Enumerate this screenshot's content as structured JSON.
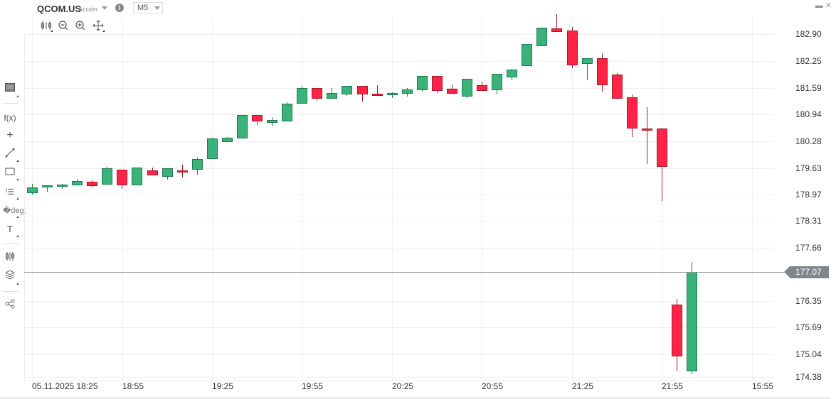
{
  "header": {
    "symbol": "QCOM.US",
    "asset_type": "Acción",
    "info_icon": "i",
    "timeframe": "M5",
    "window_controls": {
      "minimize": "▬",
      "close": "✕"
    }
  },
  "toolbar_top": {
    "icons": [
      "chart-type-icon",
      "zoom-out-icon",
      "zoom-in-icon",
      "move-crosshair-icon"
    ]
  },
  "toolbar_left": {
    "icons": [
      "chart-view-icon",
      "function-fx-icon",
      "crosshair-icon",
      "trendline-icon",
      "rectangle-icon",
      "fibonacci-icon",
      "pitchfork-icon",
      "text-icon",
      "indicators-icon",
      "layers-icon",
      "share-icon"
    ]
  },
  "current_price": "177.07",
  "colors": {
    "up": "#3bb27a",
    "up_border": "#1e7a4e",
    "down": "#ff2446",
    "down_border": "#a3182c",
    "price_tag": "#7f878c"
  },
  "chart_data": {
    "type": "candlestick",
    "title": "QCOM.US M5",
    "xlabel": "",
    "ylabel": "",
    "x_ticks": [
      "05.11.2025 18:25",
      "18:55",
      "19:25",
      "19:55",
      "20:25",
      "20:55",
      "21:25",
      "21:55",
      "15:55"
    ],
    "y_ticks": [
      "182.90",
      "182.25",
      "181.59",
      "180.94",
      "180.28",
      "179.63",
      "178.97",
      "178.31",
      "177.66",
      "176.35",
      "175.69",
      "175.04",
      "174.38"
    ],
    "ylim": [
      174.3,
      183.3
    ],
    "grid": true,
    "candles": [
      {
        "t": "18:25",
        "o": 179.0,
        "h": 179.22,
        "l": 178.97,
        "c": 179.14
      },
      {
        "t": "18:30",
        "o": 179.13,
        "h": 179.17,
        "l": 179.04,
        "c": 179.19
      },
      {
        "t": "18:35",
        "o": 179.17,
        "h": 179.23,
        "l": 179.1,
        "c": 179.21
      },
      {
        "t": "18:40",
        "o": 179.19,
        "h": 179.34,
        "l": 179.19,
        "c": 179.3
      },
      {
        "t": "18:45",
        "o": 179.28,
        "h": 179.31,
        "l": 179.14,
        "c": 179.17
      },
      {
        "t": "18:50",
        "o": 179.2,
        "h": 179.64,
        "l": 179.2,
        "c": 179.6
      },
      {
        "t": "18:55",
        "o": 179.58,
        "h": 179.58,
        "l": 179.11,
        "c": 179.19
      },
      {
        "t": "19:00",
        "o": 179.19,
        "h": 179.62,
        "l": 179.19,
        "c": 179.62
      },
      {
        "t": "19:05",
        "o": 179.55,
        "h": 179.63,
        "l": 179.44,
        "c": 179.44
      },
      {
        "t": "19:10",
        "o": 179.4,
        "h": 179.61,
        "l": 179.33,
        "c": 179.6
      },
      {
        "t": "19:15",
        "o": 179.55,
        "h": 179.69,
        "l": 179.38,
        "c": 179.51
      },
      {
        "t": "19:20",
        "o": 179.58,
        "h": 179.86,
        "l": 179.45,
        "c": 179.84
      },
      {
        "t": "19:25",
        "o": 179.84,
        "h": 180.35,
        "l": 179.84,
        "c": 180.34
      },
      {
        "t": "19:30",
        "o": 180.26,
        "h": 180.38,
        "l": 180.26,
        "c": 180.36
      },
      {
        "t": "19:35",
        "o": 180.34,
        "h": 180.91,
        "l": 180.34,
        "c": 180.91
      },
      {
        "t": "19:40",
        "o": 180.91,
        "h": 180.91,
        "l": 180.67,
        "c": 180.75
      },
      {
        "t": "19:45",
        "o": 180.73,
        "h": 180.87,
        "l": 180.63,
        "c": 180.79
      },
      {
        "t": "19:50",
        "o": 180.75,
        "h": 181.23,
        "l": 180.75,
        "c": 181.19
      },
      {
        "t": "19:55",
        "o": 181.19,
        "h": 181.62,
        "l": 181.19,
        "c": 181.58
      },
      {
        "t": "20:00",
        "o": 181.58,
        "h": 181.58,
        "l": 181.27,
        "c": 181.32
      },
      {
        "t": "20:05",
        "o": 181.32,
        "h": 181.57,
        "l": 181.31,
        "c": 181.45
      },
      {
        "t": "20:10",
        "o": 181.42,
        "h": 181.62,
        "l": 181.39,
        "c": 181.62
      },
      {
        "t": "20:15",
        "o": 181.62,
        "h": 181.62,
        "l": 181.25,
        "c": 181.42
      },
      {
        "t": "20:20",
        "o": 181.44,
        "h": 181.64,
        "l": 181.4,
        "c": 181.42
      },
      {
        "t": "20:25",
        "o": 181.42,
        "h": 181.47,
        "l": 181.34,
        "c": 181.45
      },
      {
        "t": "20:30",
        "o": 181.44,
        "h": 181.57,
        "l": 181.37,
        "c": 181.54
      },
      {
        "t": "20:35",
        "o": 181.52,
        "h": 181.88,
        "l": 181.49,
        "c": 181.88
      },
      {
        "t": "20:40",
        "o": 181.88,
        "h": 181.88,
        "l": 181.46,
        "c": 181.51
      },
      {
        "t": "20:45",
        "o": 181.56,
        "h": 181.66,
        "l": 181.43,
        "c": 181.44
      },
      {
        "t": "20:50",
        "o": 181.36,
        "h": 181.81,
        "l": 181.33,
        "c": 181.81
      },
      {
        "t": "20:55",
        "o": 181.65,
        "h": 181.74,
        "l": 181.51,
        "c": 181.51
      },
      {
        "t": "21:00",
        "o": 181.52,
        "h": 181.92,
        "l": 181.42,
        "c": 181.92
      },
      {
        "t": "21:05",
        "o": 181.83,
        "h": 182.04,
        "l": 181.76,
        "c": 182.03
      },
      {
        "t": "21:10",
        "o": 182.12,
        "h": 182.66,
        "l": 182.12,
        "c": 182.65
      },
      {
        "t": "21:15",
        "o": 182.61,
        "h": 183.06,
        "l": 182.61,
        "c": 183.05
      },
      {
        "t": "21:20",
        "o": 183.04,
        "h": 183.39,
        "l": 182.96,
        "c": 182.96
      },
      {
        "t": "21:25",
        "o": 182.99,
        "h": 183.08,
        "l": 182.07,
        "c": 182.13
      },
      {
        "t": "21:30",
        "o": 182.16,
        "h": 182.3,
        "l": 181.77,
        "c": 182.3
      },
      {
        "t": "21:35",
        "o": 182.3,
        "h": 182.43,
        "l": 181.48,
        "c": 181.64
      },
      {
        "t": "21:40",
        "o": 181.9,
        "h": 181.94,
        "l": 181.3,
        "c": 181.31
      },
      {
        "t": "21:45",
        "o": 181.35,
        "h": 181.42,
        "l": 180.38,
        "c": 180.58
      },
      {
        "t": "21:50",
        "o": 180.59,
        "h": 181.11,
        "l": 179.71,
        "c": 180.54
      },
      {
        "t": "21:55",
        "o": 180.59,
        "h": 180.6,
        "l": 178.8,
        "c": 179.64
      },
      {
        "t": "15:45",
        "o": 176.26,
        "h": 176.41,
        "l": 174.63,
        "c": 174.99
      },
      {
        "t": "15:50",
        "o": 174.62,
        "h": 177.3,
        "l": 174.56,
        "c": 177.07
      }
    ]
  }
}
